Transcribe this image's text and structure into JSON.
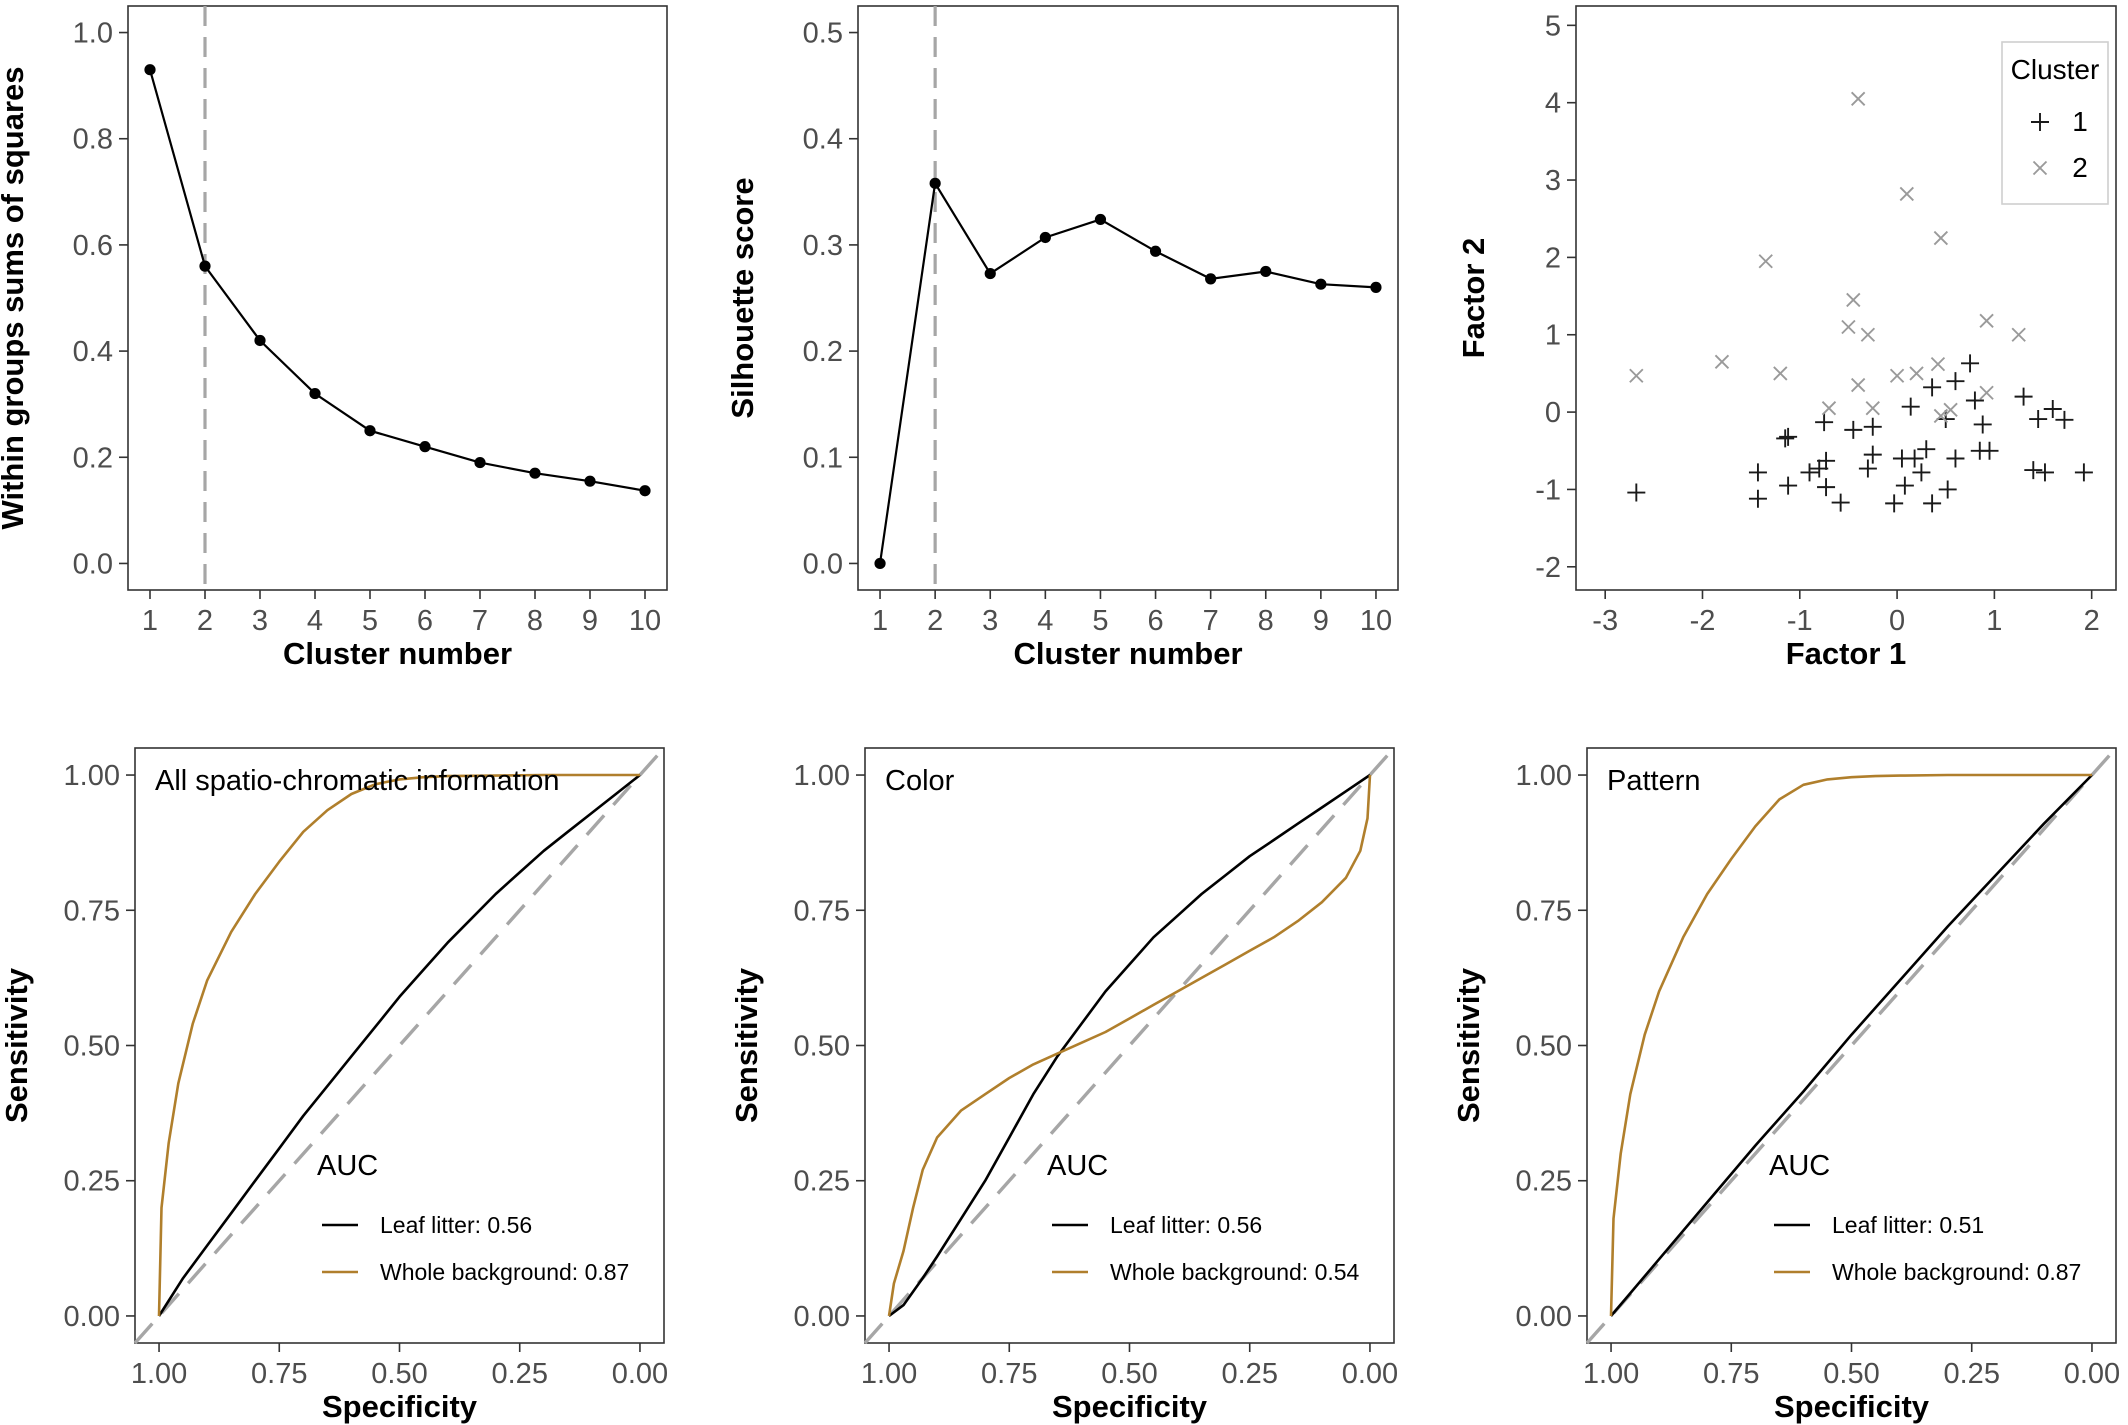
{
  "chart_data": [
    {
      "type": "line",
      "xlabel": "Cluster number",
      "ylabel": "Within groups sums of squares",
      "x": [
        1,
        2,
        3,
        4,
        5,
        6,
        7,
        8,
        9,
        10
      ],
      "y": [
        0.93,
        0.56,
        0.42,
        0.32,
        0.25,
        0.22,
        0.19,
        0.17,
        0.155,
        0.137
      ],
      "xlim": [
        0.6,
        10.4
      ],
      "ylim": [
        -0.05,
        1.05
      ],
      "xticks": [
        "1",
        "2",
        "3",
        "4",
        "5",
        "6",
        "7",
        "8",
        "9",
        "10"
      ],
      "yticks": [
        "0.0",
        "0.2",
        "0.4",
        "0.6",
        "0.8",
        "1.0"
      ],
      "vline": 2
    },
    {
      "type": "line",
      "xlabel": "Cluster number",
      "ylabel": "Silhouette score",
      "x": [
        1,
        2,
        3,
        4,
        5,
        6,
        7,
        8,
        9,
        10
      ],
      "y": [
        0.0,
        0.358,
        0.273,
        0.307,
        0.324,
        0.294,
        0.268,
        0.275,
        0.263,
        0.26
      ],
      "xlim": [
        0.6,
        10.4
      ],
      "ylim": [
        -0.025,
        0.525
      ],
      "xticks": [
        "1",
        "2",
        "3",
        "4",
        "5",
        "6",
        "7",
        "8",
        "9",
        "10"
      ],
      "yticks": [
        "0.0",
        "0.1",
        "0.2",
        "0.3",
        "0.4",
        "0.5"
      ],
      "vline": 2
    },
    {
      "type": "scatter",
      "xlabel": "Factor 1",
      "ylabel": "Factor 2",
      "xlim": [
        -3.3,
        2.25
      ],
      "ylim": [
        -2.3,
        5.25
      ],
      "xticks": [
        "-3",
        "-2",
        "-1",
        "0",
        "1",
        "2"
      ],
      "yticks": [
        "-2",
        "-1",
        "0",
        "1",
        "2",
        "3",
        "4",
        "5"
      ],
      "legend": {
        "title": "Cluster",
        "position": "top-right",
        "entries": [
          "1",
          "2"
        ]
      },
      "series": [
        {
          "name": "1",
          "marker": "plus",
          "color": "#1a1a1a",
          "points": [
            [
              -2.68,
              -1.04
            ],
            [
              -1.43,
              -0.78
            ],
            [
              -1.43,
              -1.12
            ],
            [
              -1.15,
              -0.34
            ],
            [
              -1.12,
              -0.32
            ],
            [
              -1.12,
              -0.95
            ],
            [
              -0.9,
              -0.78
            ],
            [
              -0.8,
              -0.73
            ],
            [
              -0.73,
              -0.63
            ],
            [
              -0.73,
              -0.97
            ],
            [
              -0.75,
              -0.13
            ],
            [
              -0.58,
              -1.17
            ],
            [
              -0.45,
              -0.23
            ],
            [
              -0.3,
              -0.73
            ],
            [
              -0.25,
              -0.19
            ],
            [
              -0.25,
              -0.55
            ],
            [
              -0.03,
              -1.18
            ],
            [
              0.05,
              -0.6
            ],
            [
              0.08,
              -0.95
            ],
            [
              0.14,
              0.07
            ],
            [
              0.18,
              -0.6
            ],
            [
              0.25,
              -0.78
            ],
            [
              0.3,
              -0.48
            ],
            [
              0.36,
              -1.18
            ],
            [
              0.36,
              0.32
            ],
            [
              0.5,
              -0.09
            ],
            [
              0.52,
              -1.0
            ],
            [
              0.6,
              -0.6
            ],
            [
              0.6,
              0.4
            ],
            [
              0.75,
              0.63
            ],
            [
              0.8,
              0.15
            ],
            [
              0.85,
              -0.5
            ],
            [
              0.88,
              -0.16
            ],
            [
              0.95,
              -0.5
            ],
            [
              1.3,
              0.2
            ],
            [
              1.4,
              -0.75
            ],
            [
              1.45,
              -0.09
            ],
            [
              1.52,
              -0.78
            ],
            [
              1.6,
              0.04
            ],
            [
              1.72,
              -0.1
            ],
            [
              1.92,
              -0.78
            ]
          ]
        },
        {
          "name": "2",
          "marker": "cross",
          "color": "#9a9a9a",
          "points": [
            [
              -2.68,
              0.47
            ],
            [
              -1.8,
              0.65
            ],
            [
              -1.35,
              1.95
            ],
            [
              -1.2,
              0.5
            ],
            [
              -0.7,
              0.05
            ],
            [
              -0.5,
              1.1
            ],
            [
              -0.45,
              1.45
            ],
            [
              -0.4,
              0.35
            ],
            [
              -0.4,
              4.05
            ],
            [
              -0.3,
              1.0
            ],
            [
              -0.25,
              0.05
            ],
            [
              0.0,
              0.47
            ],
            [
              0.1,
              2.82
            ],
            [
              0.2,
              0.5
            ],
            [
              0.42,
              0.62
            ],
            [
              0.45,
              2.25
            ],
            [
              0.45,
              -0.05
            ],
            [
              0.55,
              0.03
            ],
            [
              0.92,
              1.18
            ],
            [
              0.92,
              0.25
            ],
            [
              1.25,
              1.0
            ]
          ]
        }
      ]
    },
    {
      "type": "line",
      "title": "All spatio-chromatic information",
      "xlabel": "Specificity",
      "ylabel": "Sensitivity",
      "xlim": [
        1.05,
        -0.05
      ],
      "ylim": [
        -0.05,
        1.05
      ],
      "xticks": [
        "1.00",
        "0.75",
        "0.50",
        "0.25",
        "0.00"
      ],
      "yticks": [
        "0.00",
        "0.25",
        "0.50",
        "0.75",
        "1.00"
      ],
      "diagonal": true,
      "legend": {
        "title": "AUC",
        "entries": [
          "Leaf litter: 0.56",
          "Whole background: 0.87"
        ]
      },
      "series": [
        {
          "name": "Leaf litter: 0.56",
          "color": "#000000",
          "x": [
            1.0,
            0.95,
            0.9,
            0.85,
            0.8,
            0.75,
            0.7,
            0.65,
            0.6,
            0.55,
            0.5,
            0.45,
            0.4,
            0.35,
            0.3,
            0.25,
            0.2,
            0.15,
            0.1,
            0.05,
            0.0
          ],
          "y": [
            0.0,
            0.07,
            0.13,
            0.19,
            0.25,
            0.31,
            0.37,
            0.425,
            0.48,
            0.535,
            0.59,
            0.64,
            0.69,
            0.735,
            0.78,
            0.82,
            0.86,
            0.895,
            0.93,
            0.965,
            1.0
          ]
        },
        {
          "name": "Whole background: 0.87",
          "color": "#b07f2c",
          "x": [
            1.0,
            0.995,
            0.98,
            0.96,
            0.93,
            0.9,
            0.85,
            0.8,
            0.75,
            0.7,
            0.65,
            0.6,
            0.55,
            0.5,
            0.45,
            0.4,
            0.3,
            0.2,
            0.1,
            0.0
          ],
          "y": [
            0.0,
            0.2,
            0.32,
            0.43,
            0.54,
            0.62,
            0.71,
            0.78,
            0.84,
            0.895,
            0.935,
            0.965,
            0.983,
            0.992,
            0.996,
            0.998,
            0.999,
            1.0,
            1.0,
            1.0
          ]
        }
      ]
    },
    {
      "type": "line",
      "title": "Color",
      "xlabel": "Specificity",
      "ylabel": "Sensitivity",
      "xlim": [
        1.05,
        -0.05
      ],
      "ylim": [
        -0.05,
        1.05
      ],
      "xticks": [
        "1.00",
        "0.75",
        "0.50",
        "0.25",
        "0.00"
      ],
      "yticks": [
        "0.00",
        "0.25",
        "0.50",
        "0.75",
        "1.00"
      ],
      "diagonal": true,
      "legend": {
        "title": "AUC",
        "entries": [
          "Leaf litter: 0.56",
          "Whole background: 0.54"
        ]
      },
      "series": [
        {
          "name": "Leaf litter: 0.56",
          "color": "#000000",
          "x": [
            1.0,
            0.97,
            0.93,
            0.9,
            0.85,
            0.8,
            0.75,
            0.7,
            0.65,
            0.6,
            0.55,
            0.5,
            0.45,
            0.4,
            0.35,
            0.3,
            0.25,
            0.2,
            0.15,
            0.1,
            0.05,
            0.0
          ],
          "y": [
            0.0,
            0.02,
            0.07,
            0.11,
            0.18,
            0.25,
            0.33,
            0.41,
            0.48,
            0.54,
            0.6,
            0.65,
            0.7,
            0.74,
            0.78,
            0.815,
            0.85,
            0.88,
            0.91,
            0.94,
            0.97,
            1.0
          ]
        },
        {
          "name": "Whole background: 0.54",
          "color": "#b07f2c",
          "x": [
            1.0,
            0.99,
            0.97,
            0.95,
            0.93,
            0.9,
            0.85,
            0.8,
            0.75,
            0.7,
            0.65,
            0.6,
            0.55,
            0.5,
            0.45,
            0.4,
            0.35,
            0.3,
            0.25,
            0.2,
            0.15,
            0.1,
            0.05,
            0.02,
            0.005,
            0.0
          ],
          "y": [
            0.0,
            0.06,
            0.12,
            0.2,
            0.27,
            0.33,
            0.38,
            0.41,
            0.44,
            0.465,
            0.485,
            0.505,
            0.525,
            0.55,
            0.575,
            0.6,
            0.625,
            0.65,
            0.675,
            0.7,
            0.73,
            0.765,
            0.81,
            0.86,
            0.92,
            1.0
          ]
        }
      ]
    },
    {
      "type": "line",
      "title": "Pattern",
      "xlabel": "Specificity",
      "ylabel": "Sensitivity",
      "xlim": [
        1.05,
        -0.05
      ],
      "ylim": [
        -0.05,
        1.05
      ],
      "xticks": [
        "1.00",
        "0.75",
        "0.50",
        "0.25",
        "0.00"
      ],
      "yticks": [
        "0.00",
        "0.25",
        "0.50",
        "0.75",
        "1.00"
      ],
      "diagonal": true,
      "legend": {
        "title": "AUC",
        "entries": [
          "Leaf litter: 0.51",
          "Whole background: 0.87"
        ]
      },
      "series": [
        {
          "name": "Leaf litter: 0.51",
          "color": "#000000",
          "x": [
            1.0,
            0.9,
            0.8,
            0.7,
            0.6,
            0.5,
            0.4,
            0.3,
            0.2,
            0.1,
            0.0
          ],
          "y": [
            0.0,
            0.105,
            0.21,
            0.315,
            0.415,
            0.52,
            0.62,
            0.72,
            0.815,
            0.91,
            1.0
          ]
        },
        {
          "name": "Whole background: 0.87",
          "color": "#b07f2c",
          "x": [
            1.0,
            0.995,
            0.98,
            0.96,
            0.93,
            0.9,
            0.85,
            0.8,
            0.75,
            0.7,
            0.65,
            0.6,
            0.55,
            0.5,
            0.45,
            0.4,
            0.3,
            0.2,
            0.1,
            0.0
          ],
          "y": [
            0.0,
            0.18,
            0.3,
            0.41,
            0.52,
            0.6,
            0.7,
            0.78,
            0.845,
            0.905,
            0.955,
            0.982,
            0.992,
            0.996,
            0.998,
            0.999,
            1.0,
            1.0,
            1.0,
            1.0
          ]
        }
      ]
    }
  ]
}
